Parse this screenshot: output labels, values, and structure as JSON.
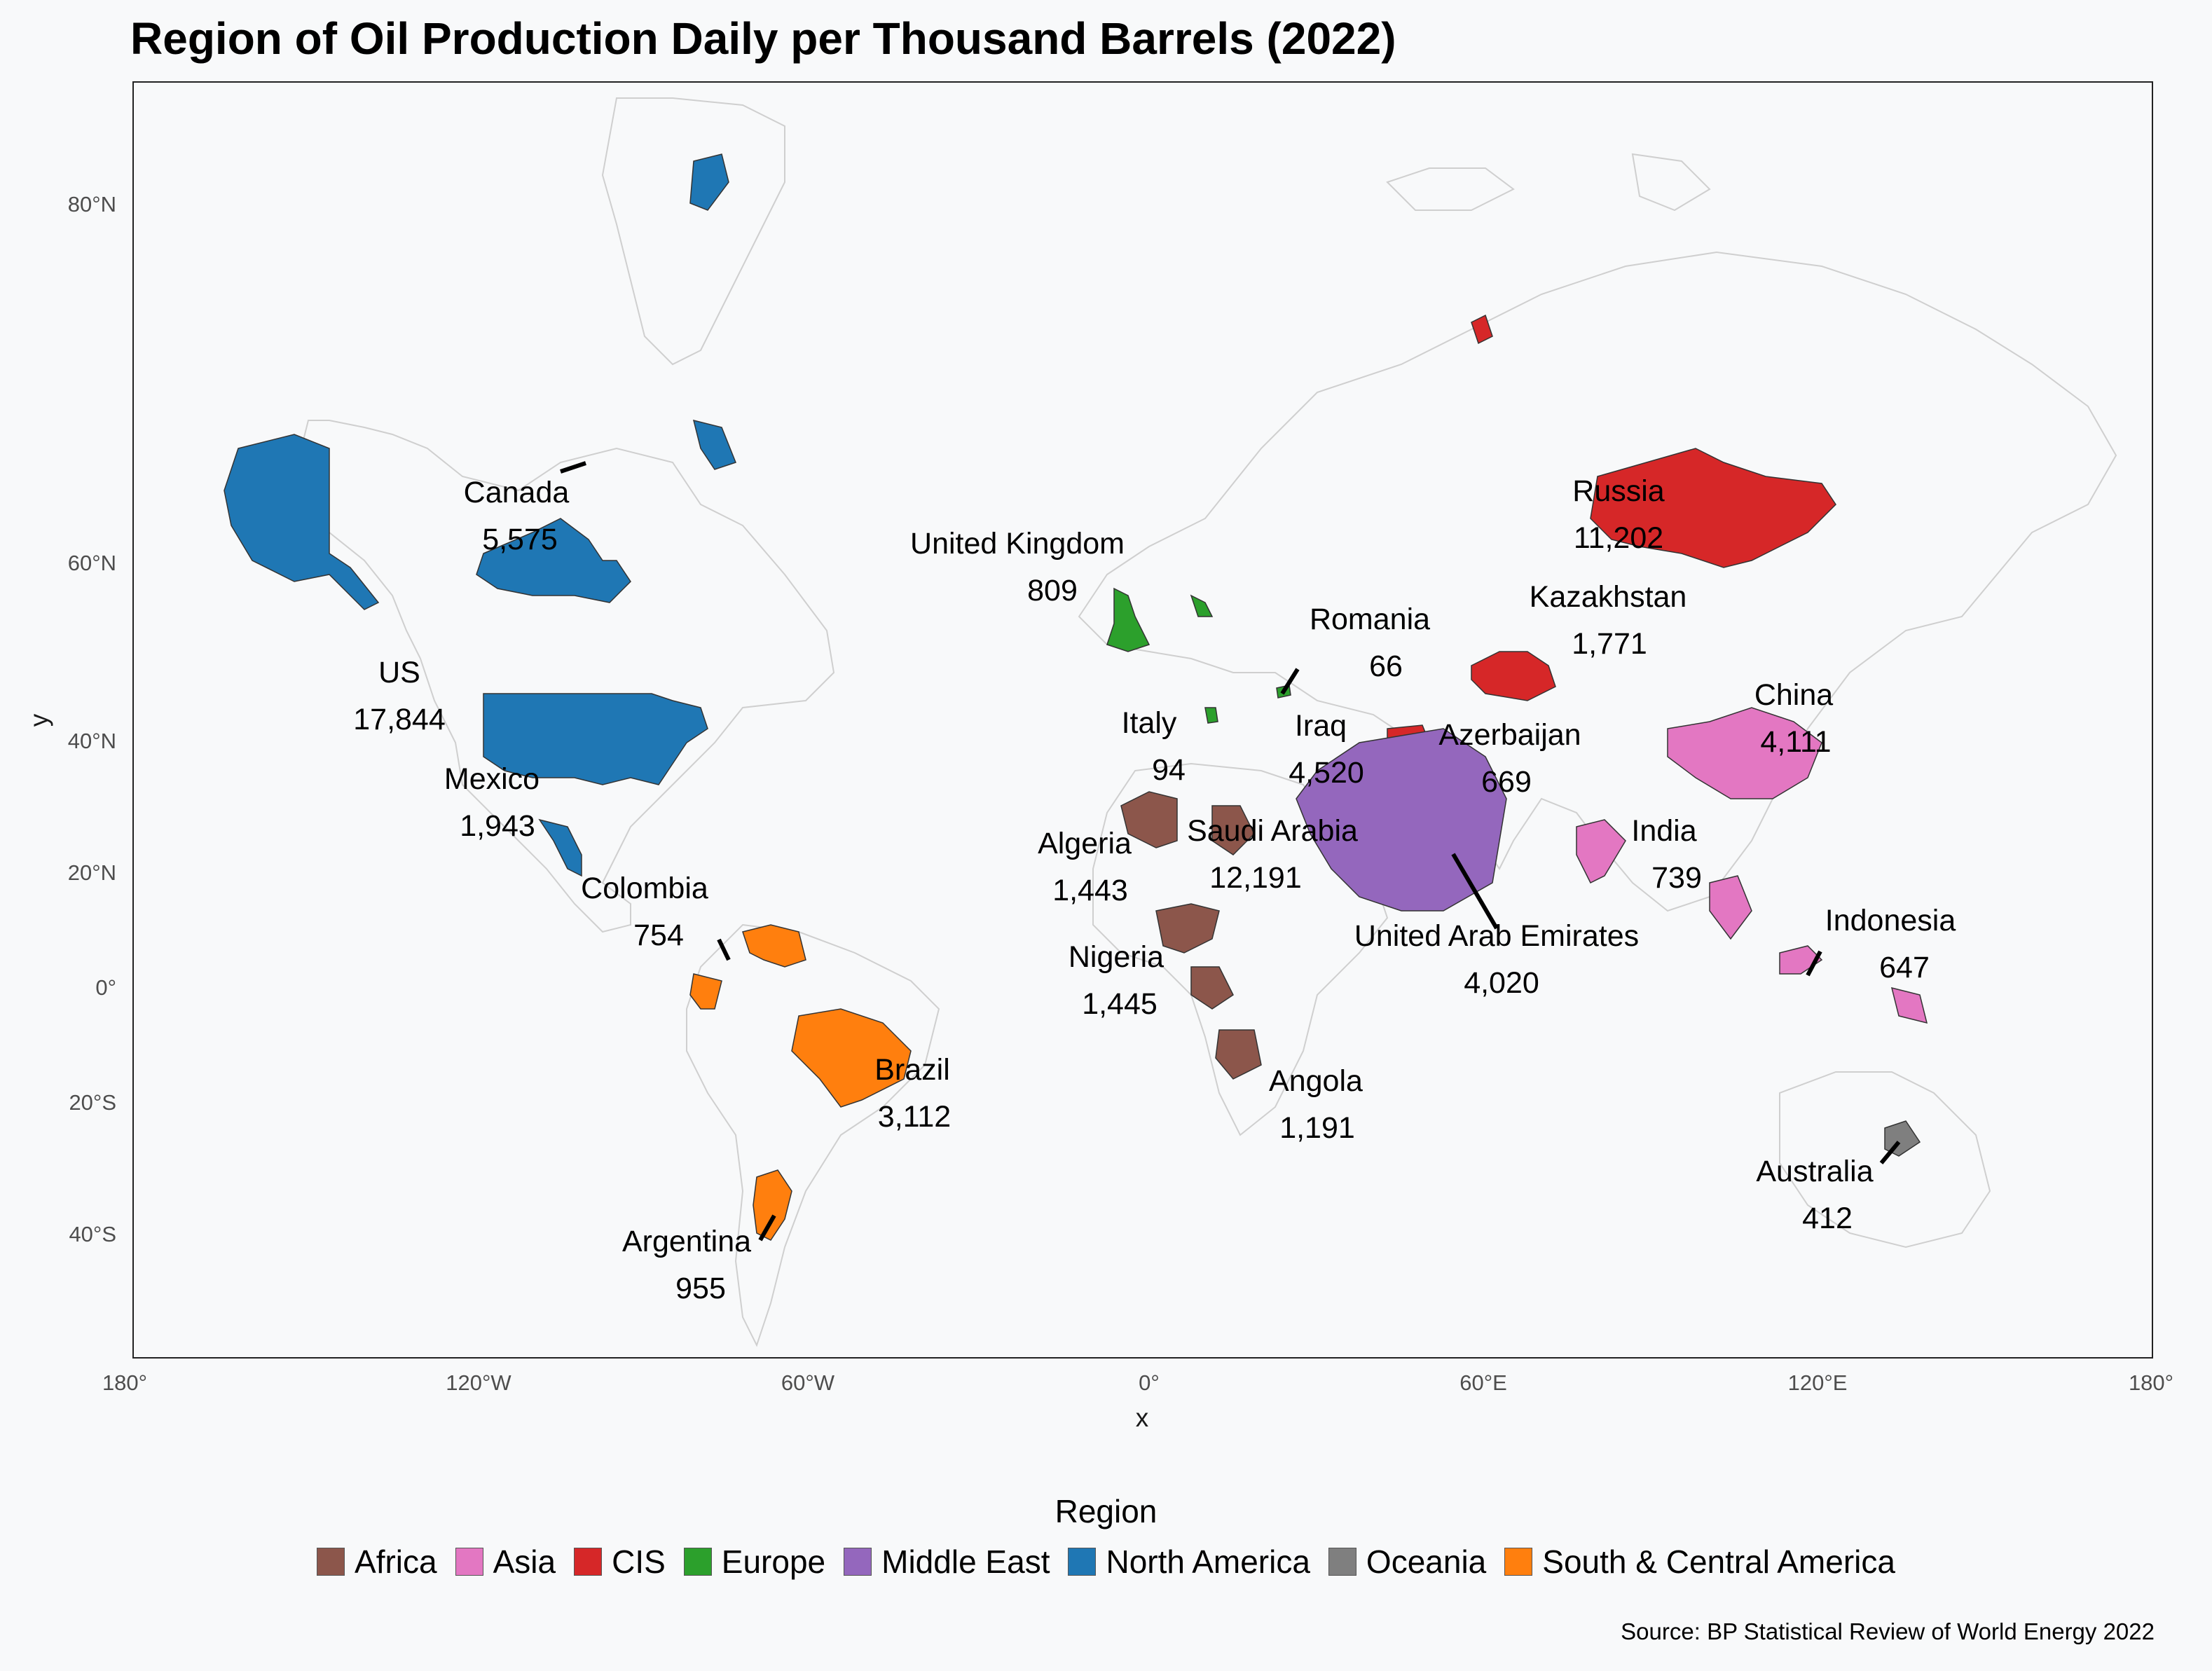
{
  "title": "Region of Oil Production Daily per Thousand Barrels (2022)",
  "source": "Source: BP Statistical Review of World Energy 2022",
  "axes": {
    "x_title": "x",
    "y_title": "y",
    "x_ticks": [
      {
        "lon": -180,
        "label": "180°"
      },
      {
        "lon": -120,
        "label": "120°W"
      },
      {
        "lon": -60,
        "label": "60°W"
      },
      {
        "lon": 0,
        "label": "0°"
      },
      {
        "lon": 60,
        "label": "60°E"
      },
      {
        "lon": 120,
        "label": "120°E"
      },
      {
        "lon": 180,
        "label": "180°"
      }
    ],
    "y_ticks": [
      {
        "lat": 80,
        "label": "80°N"
      },
      {
        "lat": 60,
        "label": "60°N"
      },
      {
        "lat": 40,
        "label": "40°N"
      },
      {
        "lat": 20,
        "label": "20°N"
      },
      {
        "lat": 0,
        "label": "0°"
      },
      {
        "lat": -20,
        "label": "20°S"
      },
      {
        "lat": -40,
        "label": "40°S"
      }
    ]
  },
  "legend": {
    "title": "Region",
    "items": [
      {
        "label": "Africa",
        "color": "#8c564b"
      },
      {
        "label": "Asia",
        "color": "#e377c2"
      },
      {
        "label": "CIS",
        "color": "#d62728"
      },
      {
        "label": "Europe",
        "color": "#2ca02c"
      },
      {
        "label": "Middle East",
        "color": "#9467bd"
      },
      {
        "label": "North America",
        "color": "#1f77b4"
      },
      {
        "label": "Oceania",
        "color": "#7f7f7f"
      },
      {
        "label": "South & Central America",
        "color": "#ff7f0e"
      }
    ]
  },
  "chart_data": {
    "type": "choropleth-map",
    "title": "Region of Oil Production Daily per Thousand Barrels (2022)",
    "xlabel": "x",
    "ylabel": "y",
    "countries": [
      {
        "name": "US",
        "value": "17,844",
        "region": "North America",
        "lon": -100,
        "lat": 40
      },
      {
        "name": "Canada",
        "value": "5,575",
        "region": "North America",
        "lon": -105,
        "lat": 58
      },
      {
        "name": "Mexico",
        "value": "1,943",
        "region": "North America",
        "lon": -102,
        "lat": 23
      },
      {
        "name": "Colombia",
        "value": "754",
        "region": "South & Central America",
        "lon": -73,
        "lat": 4
      },
      {
        "name": "Brazil",
        "value": "3,112",
        "region": "South & Central America",
        "lon": -52,
        "lat": -10
      },
      {
        "name": "Argentina",
        "value": "955",
        "region": "South & Central America",
        "lon": -66,
        "lat": -37
      },
      {
        "name": "United Kingdom",
        "value": "809",
        "region": "Europe",
        "lon": -2,
        "lat": 54
      },
      {
        "name": "Italy",
        "value": "94",
        "region": "Europe",
        "lon": 12,
        "lat": 42
      },
      {
        "name": "Romania",
        "value": "66",
        "region": "Europe",
        "lon": 25,
        "lat": 46
      },
      {
        "name": "Russia",
        "value": "11,202",
        "region": "CIS",
        "lon": 100,
        "lat": 62
      },
      {
        "name": "Kazakhstan",
        "value": "1,771",
        "region": "CIS",
        "lon": 68,
        "lat": 48
      },
      {
        "name": "Azerbaijan",
        "value": "669",
        "region": "CIS",
        "lon": 48,
        "lat": 40
      },
      {
        "name": "China",
        "value": "4,111",
        "region": "Asia",
        "lon": 104,
        "lat": 35
      },
      {
        "name": "India",
        "value": "739",
        "region": "Asia",
        "lon": 79,
        "lat": 21
      },
      {
        "name": "Indonesia",
        "value": "647",
        "region": "Asia",
        "lon": 118,
        "lat": -2
      },
      {
        "name": "Iraq",
        "value": "4,520",
        "region": "Middle East",
        "lon": 44,
        "lat": 33
      },
      {
        "name": "Saudi Arabia",
        "value": "12,191",
        "region": "Middle East",
        "lon": 45,
        "lat": 24
      },
      {
        "name": "United Arab Emirates",
        "value": "4,020",
        "region": "Middle East",
        "lon": 54,
        "lat": 24
      },
      {
        "name": "Algeria",
        "value": "1,443",
        "region": "Africa",
        "lon": 3,
        "lat": 28
      },
      {
        "name": "Nigeria",
        "value": "1,445",
        "region": "Africa",
        "lon": 8,
        "lat": 9
      },
      {
        "name": "Angola",
        "value": "1,191",
        "region": "Africa",
        "lon": 18,
        "lat": -12
      },
      {
        "name": "Australia",
        "value": "412",
        "region": "Oceania",
        "lon": 134,
        "lat": -25
      }
    ]
  }
}
